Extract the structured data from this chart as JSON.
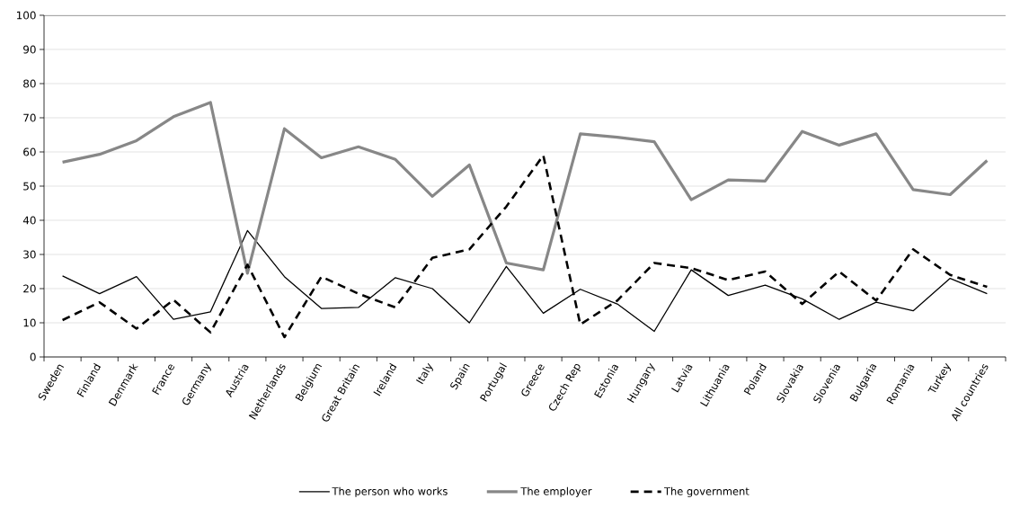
{
  "chart_data": {
    "type": "line",
    "categories": [
      "Sweden",
      "Finland",
      "Denmark",
      "France",
      "Germany",
      "Austria",
      "Netherlands",
      "Belgium",
      "Great Britain",
      "Ireland",
      "Italy",
      "Spain",
      "Portugal",
      "Greece",
      "Czech Rep",
      "Estonia",
      "Hungary",
      "Latvia",
      "Lithuania",
      "Poland",
      "Slovakia",
      "Slovenia",
      "Bulgaria",
      "Romania",
      "Turkey",
      "All countries"
    ],
    "series": [
      {
        "name": "The person who works",
        "color": "#000000",
        "line_style": "solid",
        "values": [
          23.7,
          18.5,
          23.5,
          11,
          13.2,
          37,
          23.5,
          14.2,
          14.5,
          23.2,
          20,
          10,
          26.5,
          12.8,
          19.8,
          15.5,
          7.5,
          25.5,
          18,
          21,
          17,
          11,
          16,
          13.5,
          23,
          18.5
        ]
      },
      {
        "name": "The employer",
        "color": "#878787",
        "line_style": "solid",
        "values": [
          57,
          59.3,
          63.3,
          70.3,
          74.5,
          24.5,
          66.8,
          58.3,
          61.5,
          57.8,
          47,
          56.2,
          27.5,
          25.5,
          65.3,
          64.3,
          63,
          46,
          51.8,
          51.5,
          66,
          62,
          65.3,
          49,
          47.5,
          57.5
        ]
      },
      {
        "name": "The government",
        "color": "#000000",
        "line_style": "dashed",
        "values": [
          10.8,
          16,
          8.3,
          16.7,
          7.2,
          27,
          5.8,
          23.5,
          18.5,
          14.5,
          29,
          31.5,
          44,
          59,
          9.5,
          16.5,
          27.5,
          26,
          22.5,
          25,
          15.5,
          25,
          16.5,
          31.5,
          24,
          20.5
        ]
      }
    ],
    "ylim": [
      0,
      100
    ],
    "yticks": [
      0,
      10,
      20,
      30,
      40,
      50,
      60,
      70,
      80,
      90,
      100
    ],
    "grid": "y",
    "legend": "bottom",
    "marker": "none"
  }
}
